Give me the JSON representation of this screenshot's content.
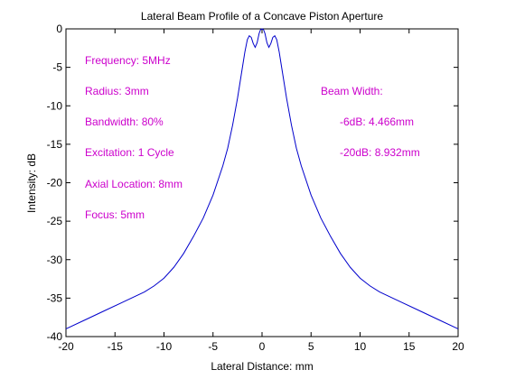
{
  "chart_data": {
    "type": "line",
    "title": "Lateral Beam Profile of a Concave Piston Aperture",
    "xlabel": "Lateral Distance: mm",
    "ylabel": "Intensity: dB",
    "xlim": [
      -20,
      20
    ],
    "ylim": [
      -40,
      0
    ],
    "xticks": [
      -20,
      -15,
      -10,
      -5,
      0,
      5,
      10,
      15,
      20
    ],
    "yticks": [
      0,
      -5,
      -10,
      -15,
      -20,
      -25,
      -30,
      -35,
      -40
    ],
    "xtick_labels": [
      "-20",
      "-15",
      "-10",
      "-5",
      "0",
      "5",
      "10",
      "15",
      "20"
    ],
    "ytick_labels": [
      "0",
      "-5",
      "-10",
      "-15",
      "-20",
      "-25",
      "-30",
      "-35",
      "-40"
    ],
    "grid": false,
    "line_color": "#0000cc",
    "annotation_color": "#cc00cc",
    "series": [
      {
        "x": [
          -20,
          -18,
          -16,
          -14,
          -12,
          -11,
          -10,
          -9,
          -8,
          -7,
          -6,
          -5,
          -4,
          -3.5,
          -3,
          -2.5,
          -2,
          -1.75,
          -1.5,
          -1.3,
          -1.1,
          -0.9,
          -0.7,
          -0.5,
          -0.3,
          -0.15,
          0,
          0.15,
          0.3,
          0.5,
          0.7,
          0.9,
          1.1,
          1.3,
          1.5,
          1.75,
          2,
          2.5,
          3,
          3.5,
          4,
          5,
          6,
          7,
          8,
          9,
          10,
          11,
          12,
          14,
          16,
          18,
          20
        ],
        "y": [
          -39,
          -37.8,
          -36.6,
          -35.4,
          -34.2,
          -33.4,
          -32.4,
          -31,
          -29.2,
          -27,
          -24.6,
          -21.6,
          -17.8,
          -15.5,
          -12.5,
          -9,
          -5,
          -3,
          -1.4,
          -0.9,
          -1.1,
          -1.9,
          -2.4,
          -1.8,
          -0.6,
          -0.1,
          0,
          -0.1,
          -0.6,
          -1.8,
          -2.4,
          -1.9,
          -1.1,
          -0.9,
          -1.4,
          -3,
          -5,
          -9,
          -12.5,
          -15.5,
          -17.8,
          -21.6,
          -24.6,
          -27,
          -29.2,
          -31,
          -32.4,
          -33.4,
          -34.2,
          -35.4,
          -36.6,
          -37.8,
          -39
        ]
      }
    ],
    "annotations_left": [
      "Frequency: 5MHz",
      "Radius: 3mm",
      "Bandwidth: 80%",
      "Excitation: 1 Cycle",
      "Axial Location: 8mm",
      "Focus: 5mm"
    ],
    "annotations_right": [
      "Beam Width:",
      "-6dB: 4.466mm",
      "-20dB: 8.932mm"
    ]
  }
}
